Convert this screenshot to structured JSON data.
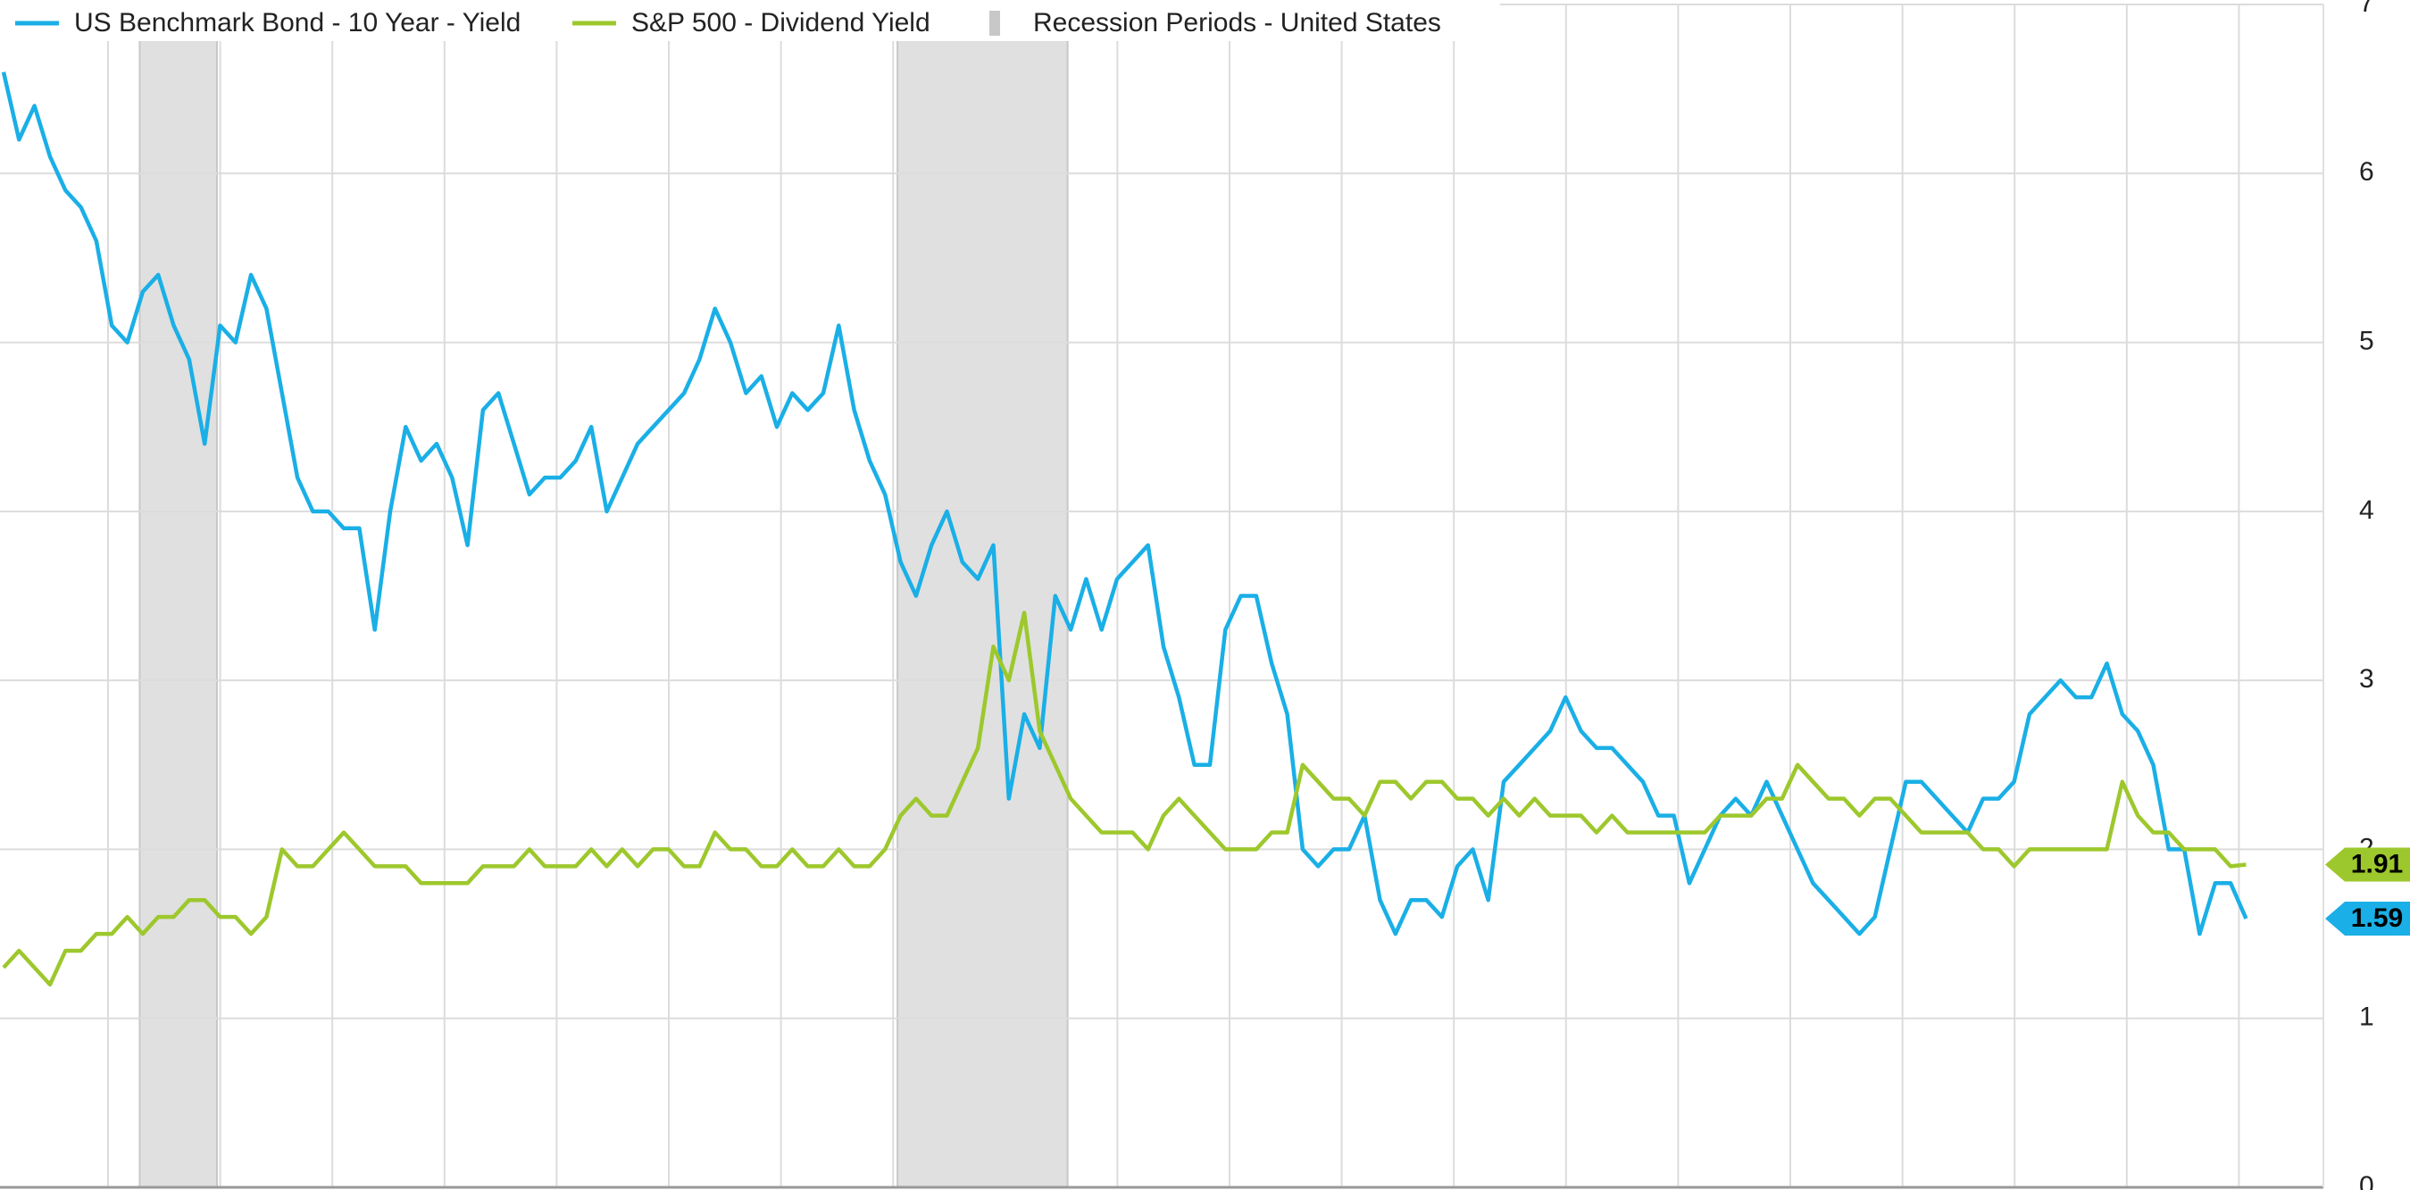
{
  "chart_data": {
    "type": "line",
    "series": [
      {
        "name": "US Benchmark Bond - 10 Year - Yield",
        "color": "#1aafe6",
        "values": [
          6.6,
          6.2,
          6.4,
          6.1,
          5.9,
          5.8,
          5.6,
          5.1,
          5.0,
          5.3,
          5.4,
          5.1,
          4.9,
          4.4,
          5.1,
          5.0,
          5.4,
          5.2,
          4.7,
          4.2,
          4.0,
          4.0,
          3.9,
          3.9,
          3.3,
          4.0,
          4.5,
          4.3,
          4.4,
          4.2,
          3.8,
          4.6,
          4.7,
          4.4,
          4.1,
          4.2,
          4.2,
          4.3,
          4.5,
          4.0,
          4.2,
          4.4,
          4.5,
          4.6,
          4.7,
          4.9,
          5.2,
          5.0,
          4.7,
          4.8,
          4.5,
          4.7,
          4.6,
          4.7,
          5.1,
          4.6,
          4.3,
          4.1,
          3.7,
          3.5,
          3.8,
          4.0,
          3.7,
          3.6,
          3.8,
          2.3,
          2.8,
          2.6,
          3.5,
          3.3,
          3.6,
          3.3,
          3.6,
          3.7,
          3.8,
          3.2,
          2.9,
          2.5,
          2.5,
          3.3,
          3.5,
          3.5,
          3.1,
          2.8,
          2.0,
          1.9,
          2.0,
          2.0,
          2.2,
          1.7,
          1.5,
          1.7,
          1.7,
          1.6,
          1.9,
          2.0,
          1.7,
          2.4,
          2.5,
          2.6,
          2.7,
          2.9,
          2.7,
          2.6,
          2.6,
          2.5,
          2.4,
          2.2,
          2.2,
          1.8,
          2.0,
          2.2,
          2.3,
          2.2,
          2.4,
          2.2,
          2.0,
          1.8,
          1.7,
          1.6,
          1.5,
          1.6,
          2.0,
          2.4,
          2.4,
          2.3,
          2.2,
          2.1,
          2.3,
          2.3,
          2.4,
          2.8,
          2.9,
          3.0,
          2.9,
          2.9,
          3.1,
          2.8,
          2.7,
          2.5,
          2.0,
          2.0,
          1.5,
          1.8,
          1.8,
          1.59
        ]
      },
      {
        "name": "S&P 500 - Dividend Yield",
        "color": "#9dc82d",
        "values": [
          1.3,
          1.4,
          1.3,
          1.2,
          1.4,
          1.4,
          1.5,
          1.5,
          1.6,
          1.5,
          1.6,
          1.6,
          1.7,
          1.7,
          1.6,
          1.6,
          1.5,
          1.6,
          2.0,
          1.9,
          1.9,
          2.0,
          2.1,
          2.0,
          1.9,
          1.9,
          1.9,
          1.8,
          1.8,
          1.8,
          1.8,
          1.9,
          1.9,
          1.9,
          2.0,
          1.9,
          1.9,
          1.9,
          2.0,
          1.9,
          2.0,
          1.9,
          2.0,
          2.0,
          1.9,
          1.9,
          2.1,
          2.0,
          2.0,
          1.9,
          1.9,
          2.0,
          1.9,
          1.9,
          2.0,
          1.9,
          1.9,
          2.0,
          2.2,
          2.3,
          2.2,
          2.2,
          2.4,
          2.6,
          3.2,
          3.0,
          3.4,
          2.7,
          2.5,
          2.3,
          2.2,
          2.1,
          2.1,
          2.1,
          2.0,
          2.2,
          2.3,
          2.2,
          2.1,
          2.0,
          2.0,
          2.0,
          2.1,
          2.1,
          2.5,
          2.4,
          2.3,
          2.3,
          2.2,
          2.4,
          2.4,
          2.3,
          2.4,
          2.4,
          2.3,
          2.3,
          2.2,
          2.3,
          2.2,
          2.3,
          2.2,
          2.2,
          2.2,
          2.1,
          2.2,
          2.1,
          2.1,
          2.1,
          2.1,
          2.1,
          2.1,
          2.2,
          2.2,
          2.2,
          2.3,
          2.3,
          2.5,
          2.4,
          2.3,
          2.3,
          2.2,
          2.3,
          2.3,
          2.2,
          2.1,
          2.1,
          2.1,
          2.1,
          2.0,
          2.0,
          1.9,
          2.0,
          2.0,
          2.0,
          2.0,
          2.0,
          2.0,
          2.4,
          2.2,
          2.1,
          2.1,
          2.0,
          2.0,
          2.0,
          1.9,
          1.91
        ]
      }
    ],
    "recessions": {
      "name": "Recession Periods - United States",
      "color": "#e0e0e0",
      "periods": [
        [
          8.8,
          13.8
        ],
        [
          57.8,
          68.8
        ]
      ]
    },
    "ylim": [
      0,
      7
    ],
    "yticks": [
      0,
      1,
      2,
      3,
      4,
      5,
      6,
      7
    ],
    "grid": true
  }
}
